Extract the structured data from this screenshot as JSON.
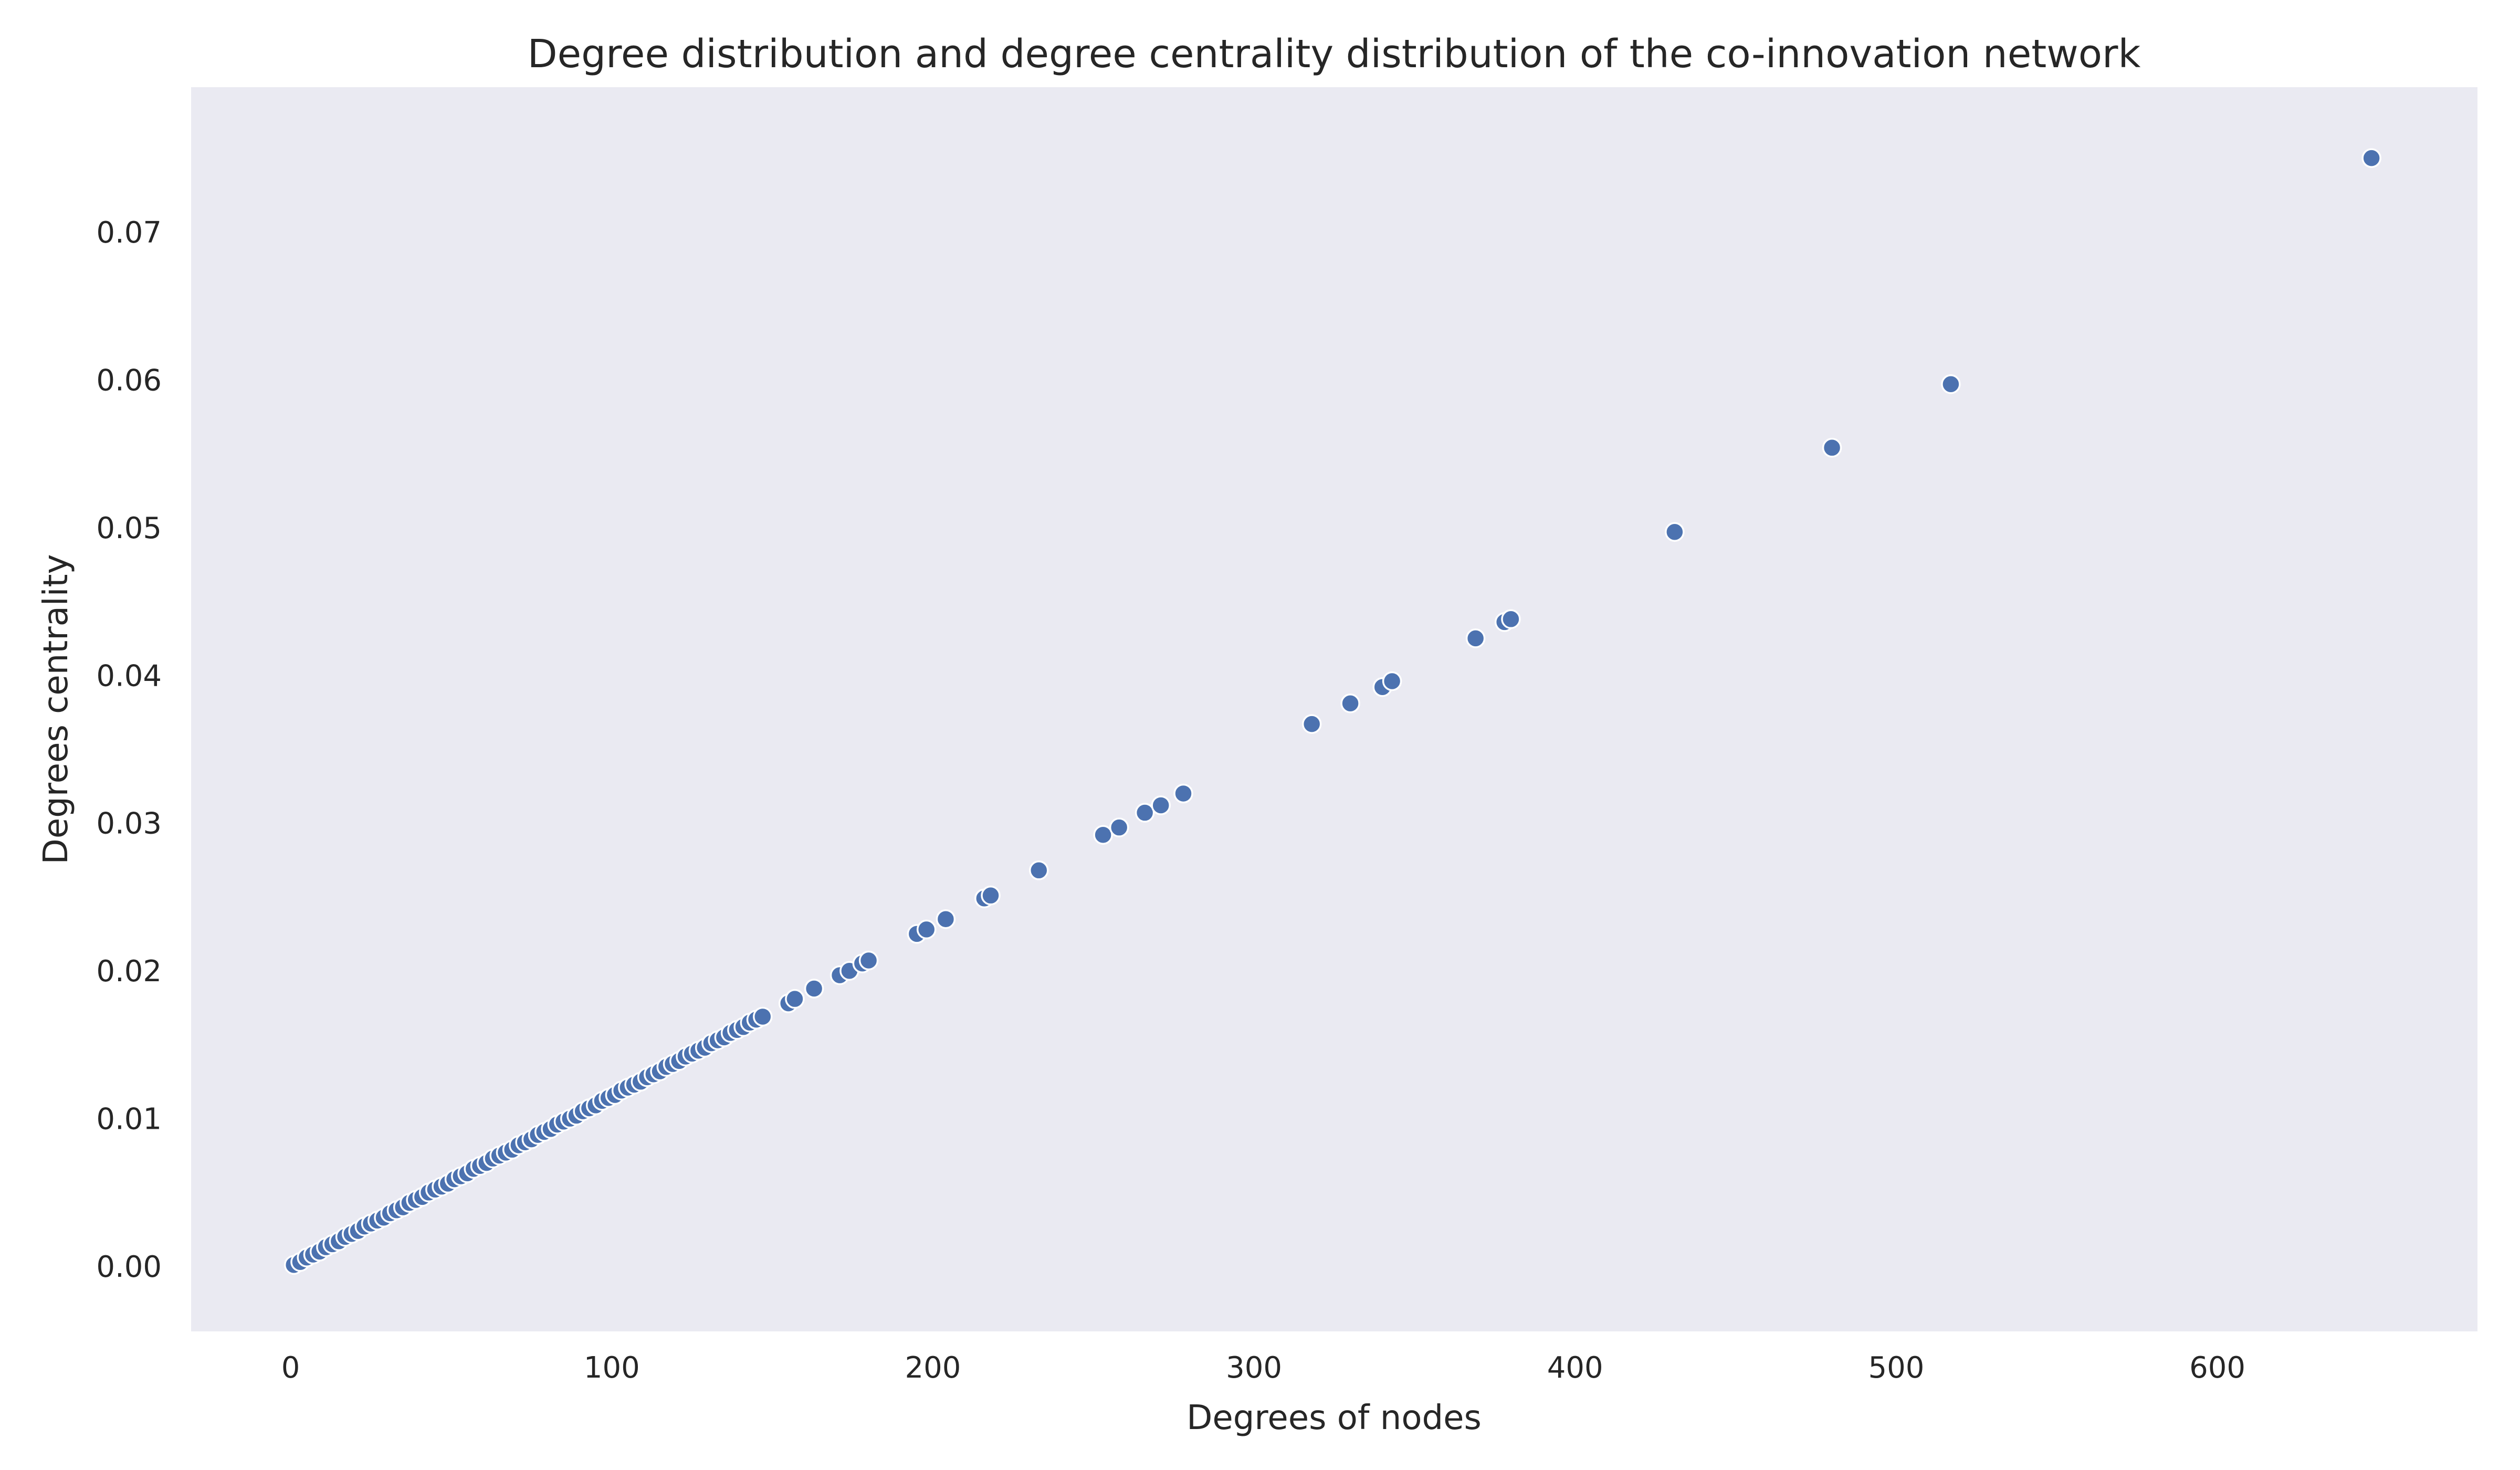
{
  "chart_data": {
    "type": "scatter",
    "title": "Degree distribution and degree centrality distribution of the co-innovation network",
    "xlabel": "Degrees of nodes",
    "ylabel": "Degrees centrality",
    "xlim": [
      -31,
      681
    ],
    "ylim": [
      -0.0044,
      0.0798
    ],
    "xticks": [
      0,
      100,
      200,
      300,
      400,
      500,
      600
    ],
    "yticks": [
      0.0,
      0.01,
      0.02,
      0.03,
      0.04,
      0.05,
      0.06,
      0.07
    ],
    "ytick_labels": [
      "0.00",
      "0.01",
      "0.02",
      "0.03",
      "0.04",
      "0.05",
      "0.06",
      "0.07"
    ],
    "grid": false,
    "background": "#eaeaf2",
    "point_color": "#4c72b0",
    "series": [
      {
        "x": [
          1,
          3,
          5,
          7,
          9,
          11,
          13,
          15,
          17,
          19,
          21,
          23,
          25,
          27,
          29,
          31,
          33,
          35,
          37,
          39,
          41,
          43,
          45,
          47,
          49,
          51,
          53,
          55,
          57,
          59,
          61,
          63,
          65,
          67,
          69,
          71,
          73,
          75,
          77,
          79,
          81,
          83,
          85,
          87,
          89,
          91,
          93,
          95,
          97,
          99,
          101,
          103,
          105,
          107,
          109,
          111,
          113,
          115,
          117,
          119,
          121,
          123,
          125,
          127,
          129,
          131,
          133,
          135,
          137,
          139,
          141,
          143,
          145,
          147,
          155,
          157,
          163,
          171,
          174,
          178,
          180,
          195,
          198,
          204,
          216,
          218,
          233,
          253,
          258,
          266,
          271,
          278,
          318,
          330,
          340,
          343,
          369,
          378,
          380,
          431,
          480,
          517,
          648
        ],
        "y": [
          0.0001,
          0.0003,
          0.0006,
          0.0008,
          0.001,
          0.0013,
          0.0015,
          0.0017,
          0.002,
          0.0022,
          0.0024,
          0.0027,
          0.0029,
          0.0031,
          0.0033,
          0.0036,
          0.0038,
          0.004,
          0.0043,
          0.0045,
          0.0047,
          0.005,
          0.0052,
          0.0054,
          0.0056,
          0.0059,
          0.0061,
          0.0063,
          0.0066,
          0.0068,
          0.007,
          0.0073,
          0.0075,
          0.0077,
          0.0079,
          0.0082,
          0.0084,
          0.0086,
          0.0089,
          0.0091,
          0.0093,
          0.0096,
          0.0098,
          0.01,
          0.0102,
          0.0105,
          0.0107,
          0.0109,
          0.0112,
          0.0114,
          0.0116,
          0.0119,
          0.0121,
          0.0123,
          0.0125,
          0.0128,
          0.013,
          0.0132,
          0.0135,
          0.0137,
          0.0139,
          0.0142,
          0.0144,
          0.0146,
          0.0148,
          0.0151,
          0.0153,
          0.0155,
          0.0158,
          0.016,
          0.0162,
          0.0165,
          0.0167,
          0.0169,
          0.0178,
          0.0181,
          0.0188,
          0.0197,
          0.02,
          0.0205,
          0.0207,
          0.0225,
          0.0228,
          0.0235,
          0.0249,
          0.0251,
          0.0268,
          0.0292,
          0.0297,
          0.0307,
          0.0312,
          0.032,
          0.0367,
          0.0381,
          0.0392,
          0.0396,
          0.0425,
          0.0436,
          0.0438,
          0.0497,
          0.0554,
          0.0597,
          0.075
        ]
      }
    ]
  }
}
